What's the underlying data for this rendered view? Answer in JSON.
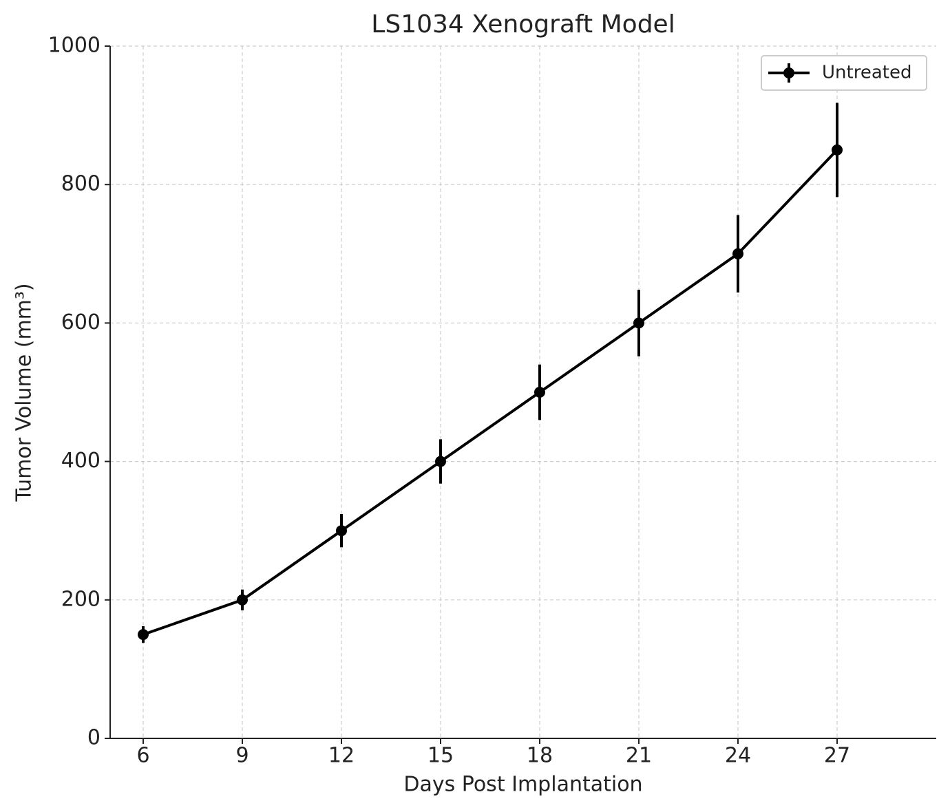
{
  "chart_data": {
    "type": "line",
    "title": "LS1034 Xenograft Model",
    "xlabel": "Days Post Implantation",
    "ylabel": "Tumor Volume (mm³)",
    "x": [
      6,
      9,
      12,
      15,
      18,
      21,
      24,
      27
    ],
    "series": [
      {
        "name": "Untreated",
        "color": "#000000",
        "values": [
          150,
          200,
          300,
          400,
          500,
          600,
          700,
          850
        ],
        "errors": [
          12,
          15,
          24,
          32,
          40,
          48,
          56,
          68
        ]
      }
    ],
    "xlim": [
      5,
      30
    ],
    "ylim": [
      0,
      1000
    ],
    "xticks": [
      6,
      9,
      12,
      15,
      18,
      21,
      24,
      27
    ],
    "yticks": [
      0,
      200,
      400,
      600,
      800,
      1000
    ],
    "grid": true,
    "legend": "upper right"
  }
}
